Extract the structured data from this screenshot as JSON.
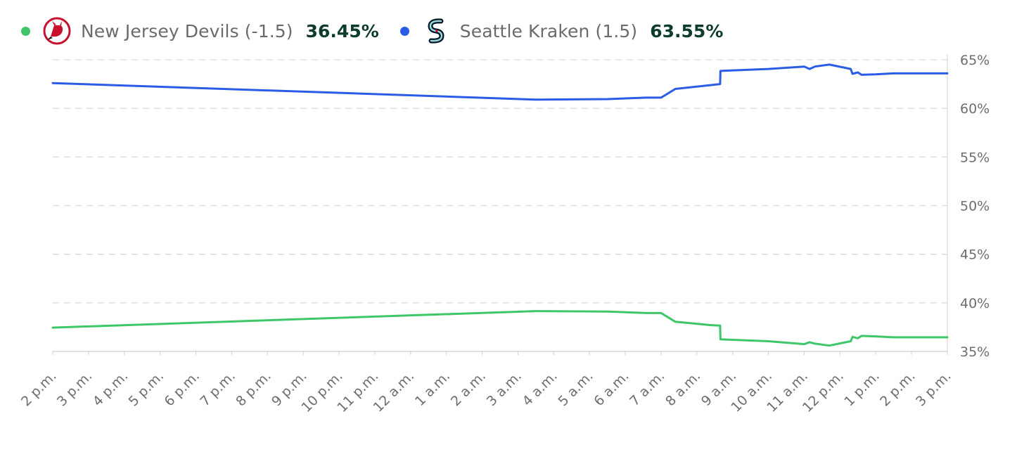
{
  "legend": [
    {
      "team": "New Jersey Devils (-1.5)",
      "value": "36.45%",
      "color": "#3ec769",
      "icon": "devils-logo-icon"
    },
    {
      "team": "Seattle Kraken (1.5)",
      "value": "63.55%",
      "color": "#2b5ce6",
      "icon": "kraken-logo-icon"
    }
  ],
  "chart_data": {
    "type": "line",
    "title": "",
    "xlabel": "",
    "ylabel": "",
    "ylim": [
      35,
      65
    ],
    "xlim": [
      0,
      25
    ],
    "yticks": [
      35,
      40,
      45,
      50,
      55,
      60,
      65
    ],
    "ytick_labels": [
      "35%",
      "40%",
      "45%",
      "50%",
      "55%",
      "60%",
      "65%"
    ],
    "x_tick_labels": [
      "2 p.m.",
      "3 p.m.",
      "4 p.m.",
      "5 p.m.",
      "6 p.m.",
      "7 p.m.",
      "8 p.m.",
      "9 p.m.",
      "10 p.m.",
      "11 p.m.",
      "12 a.m.",
      "1 a.m.",
      "2 a.m.",
      "3 a.m.",
      "4 a.m.",
      "5 a.m.",
      "6 a.m.",
      "7 a.m.",
      "8 a.m.",
      "9 a.m.",
      "10 a.m.",
      "11 a.m.",
      "12 p.m.",
      "1 p.m.",
      "2 p.m.",
      "3 p.m."
    ],
    "grid": true,
    "series": [
      {
        "name": "New Jersey Devils (-1.5)",
        "color": "#3ec769",
        "points": [
          [
            0,
            37.45
          ],
          [
            13.5,
            39.15
          ],
          [
            15.5,
            39.1
          ],
          [
            16.6,
            38.95
          ],
          [
            17.0,
            38.95
          ],
          [
            17.4,
            38.05
          ],
          [
            18.4,
            37.7
          ],
          [
            18.65,
            37.65
          ],
          [
            18.66,
            36.25
          ],
          [
            20.0,
            36.05
          ],
          [
            21.0,
            35.75
          ],
          [
            21.15,
            35.95
          ],
          [
            21.3,
            35.8
          ],
          [
            21.7,
            35.6
          ],
          [
            22.3,
            36.05
          ],
          [
            22.35,
            36.5
          ],
          [
            22.5,
            36.35
          ],
          [
            22.6,
            36.6
          ],
          [
            23.0,
            36.55
          ],
          [
            23.5,
            36.45
          ],
          [
            25.0,
            36.45
          ]
        ]
      },
      {
        "name": "Seattle Kraken (1.5)",
        "color": "#2b5ce6",
        "points": [
          [
            0,
            62.6
          ],
          [
            13.5,
            60.9
          ],
          [
            15.5,
            60.95
          ],
          [
            16.6,
            61.1
          ],
          [
            17.0,
            61.1
          ],
          [
            17.4,
            62.0
          ],
          [
            18.4,
            62.4
          ],
          [
            18.65,
            62.5
          ],
          [
            18.66,
            63.85
          ],
          [
            20.0,
            64.05
          ],
          [
            21.0,
            64.3
          ],
          [
            21.15,
            64.05
          ],
          [
            21.3,
            64.3
          ],
          [
            21.7,
            64.5
          ],
          [
            22.3,
            64.05
          ],
          [
            22.35,
            63.55
          ],
          [
            22.5,
            63.7
          ],
          [
            22.6,
            63.45
          ],
          [
            23.0,
            63.5
          ],
          [
            23.5,
            63.6
          ],
          [
            25.0,
            63.6
          ]
        ]
      }
    ]
  }
}
